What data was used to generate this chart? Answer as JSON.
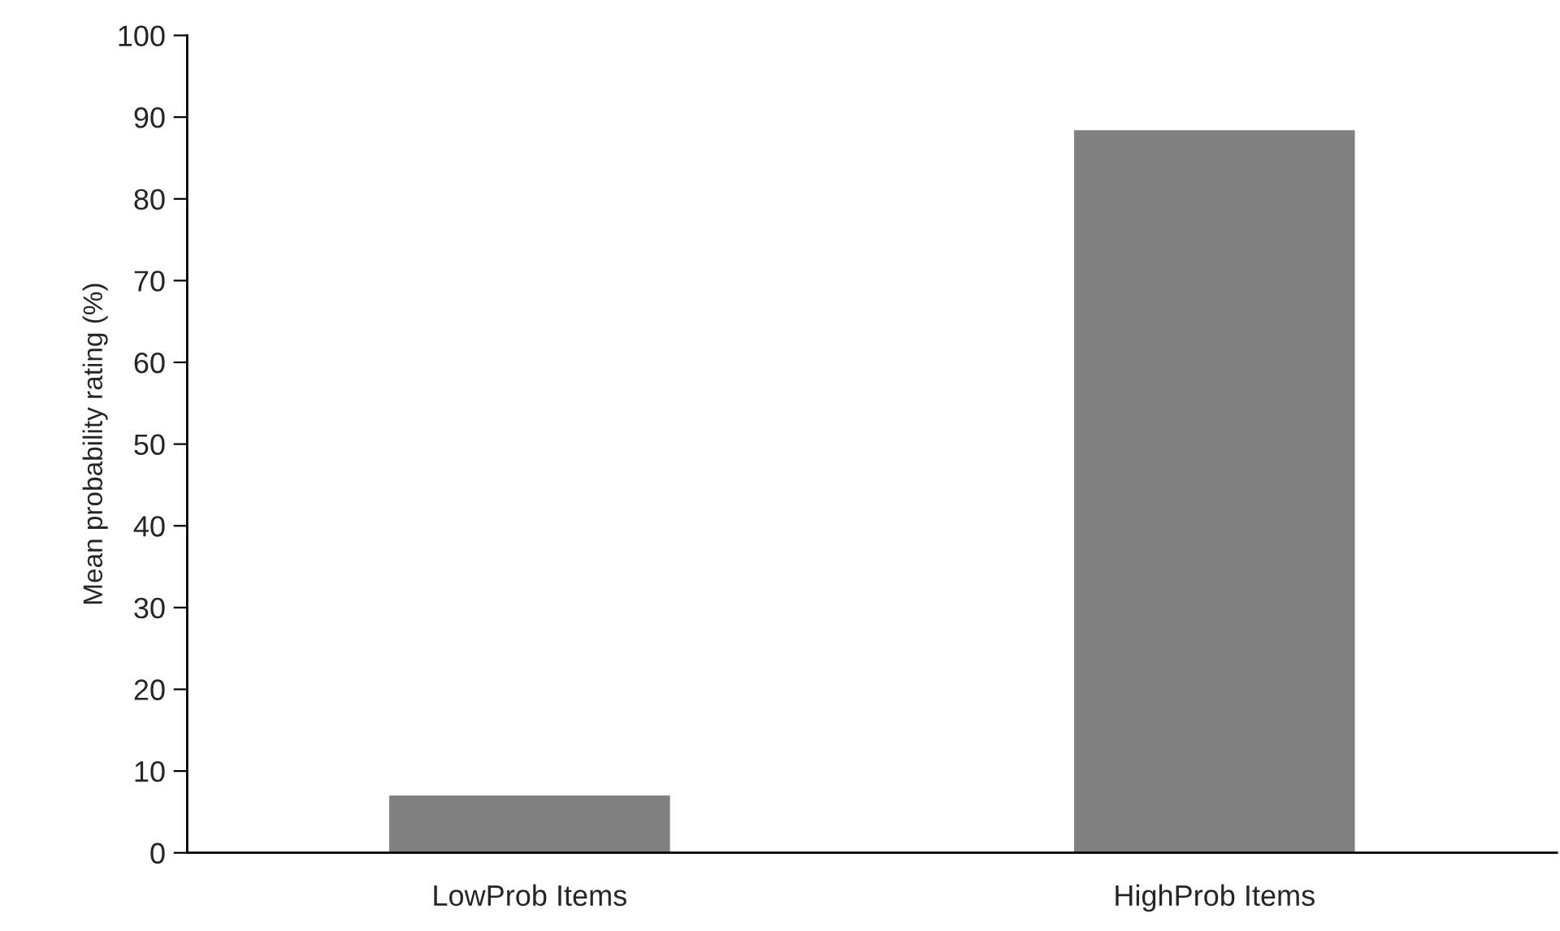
{
  "chart_data": {
    "type": "bar",
    "ylabel": "Mean probability rating (%)",
    "categories": [
      "LowProb Items",
      "HighProb Items"
    ],
    "values": [
      7,
      88.4
    ],
    "color": "#808080",
    "ylim": [
      0,
      100
    ],
    "yticks": [
      0,
      10,
      20,
      30,
      40,
      50,
      60,
      70,
      80,
      90,
      100
    ],
    "grid": false,
    "legend": false
  }
}
